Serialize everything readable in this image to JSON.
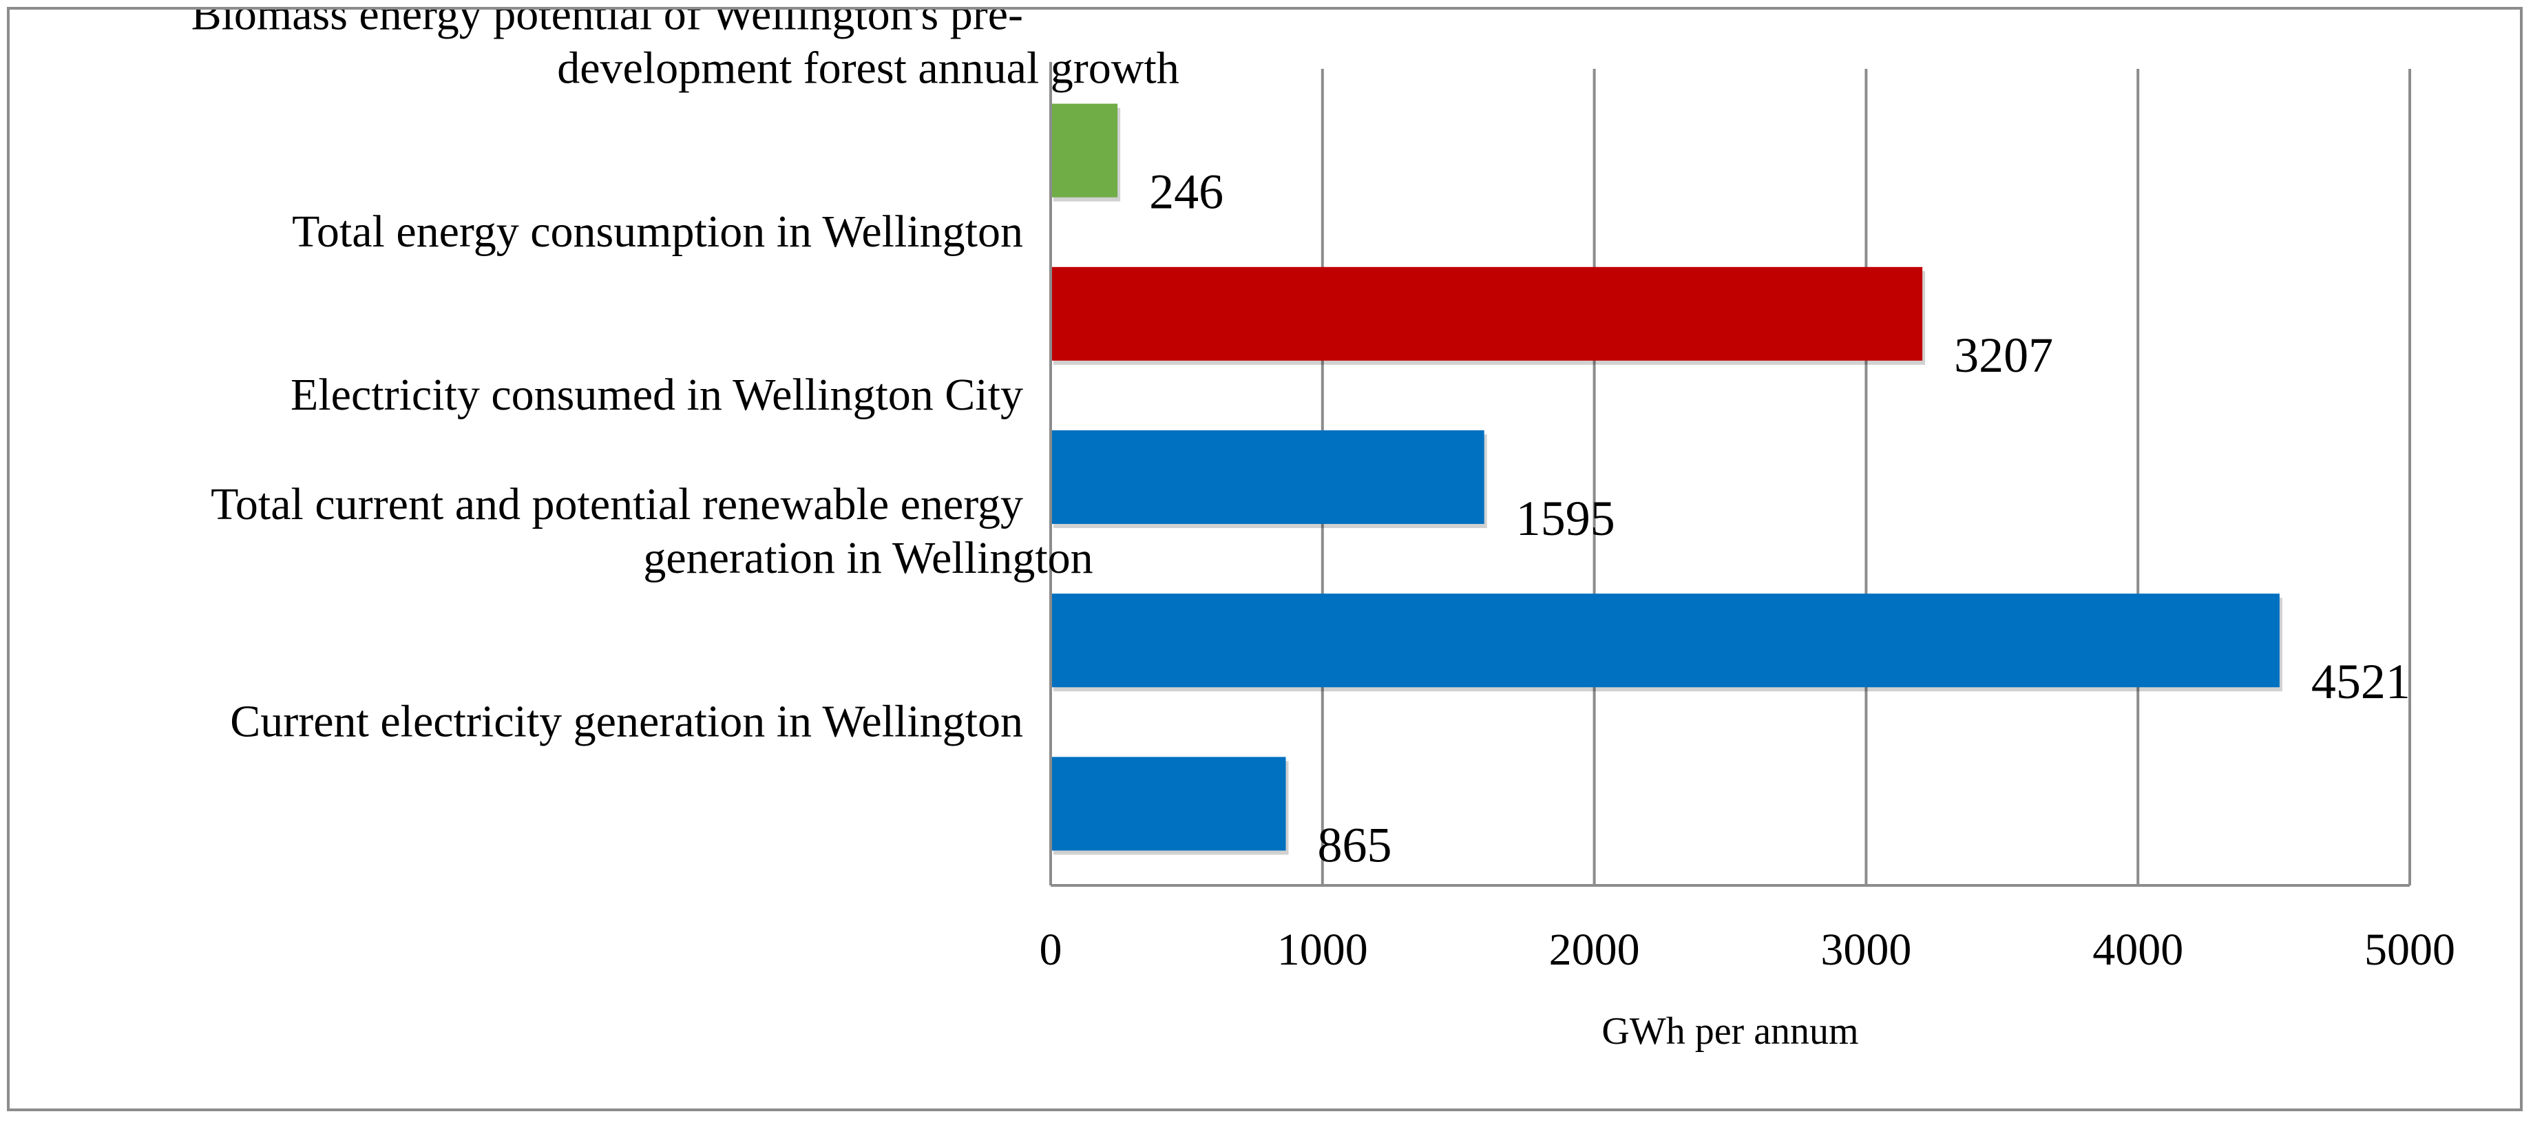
{
  "chart_data": {
    "type": "bar",
    "orientation": "horizontal",
    "title": "",
    "xlabel": "GWh per annum",
    "ylabel": "",
    "xlim": [
      0,
      5000
    ],
    "xticks": [
      0,
      1000,
      2000,
      3000,
      4000,
      5000
    ],
    "grid": true,
    "legend": "none",
    "categories": [
      {
        "lines": [
          "Current electricity generation in Wellington"
        ],
        "value": 865,
        "value_label": "865",
        "color": "#0070C0"
      },
      {
        "lines": [
          "Total current and potential renewable energy",
          "generation in Wellington"
        ],
        "value": 4521,
        "value_label": "4521",
        "color": "#0070C0"
      },
      {
        "lines": [
          "Electricity consumed in Wellington City"
        ],
        "value": 1595,
        "value_label": "1595",
        "color": "#0070C0"
      },
      {
        "lines": [
          "Total energy consumption in Wellington"
        ],
        "value": 3207,
        "value_label": "3207",
        "color": "#C00000"
      },
      {
        "lines": [
          "Biomass energy potential of Wellington's pre-",
          "development forest annual growth"
        ],
        "value": 246,
        "value_label": "246",
        "color": "#70AD47"
      }
    ]
  }
}
